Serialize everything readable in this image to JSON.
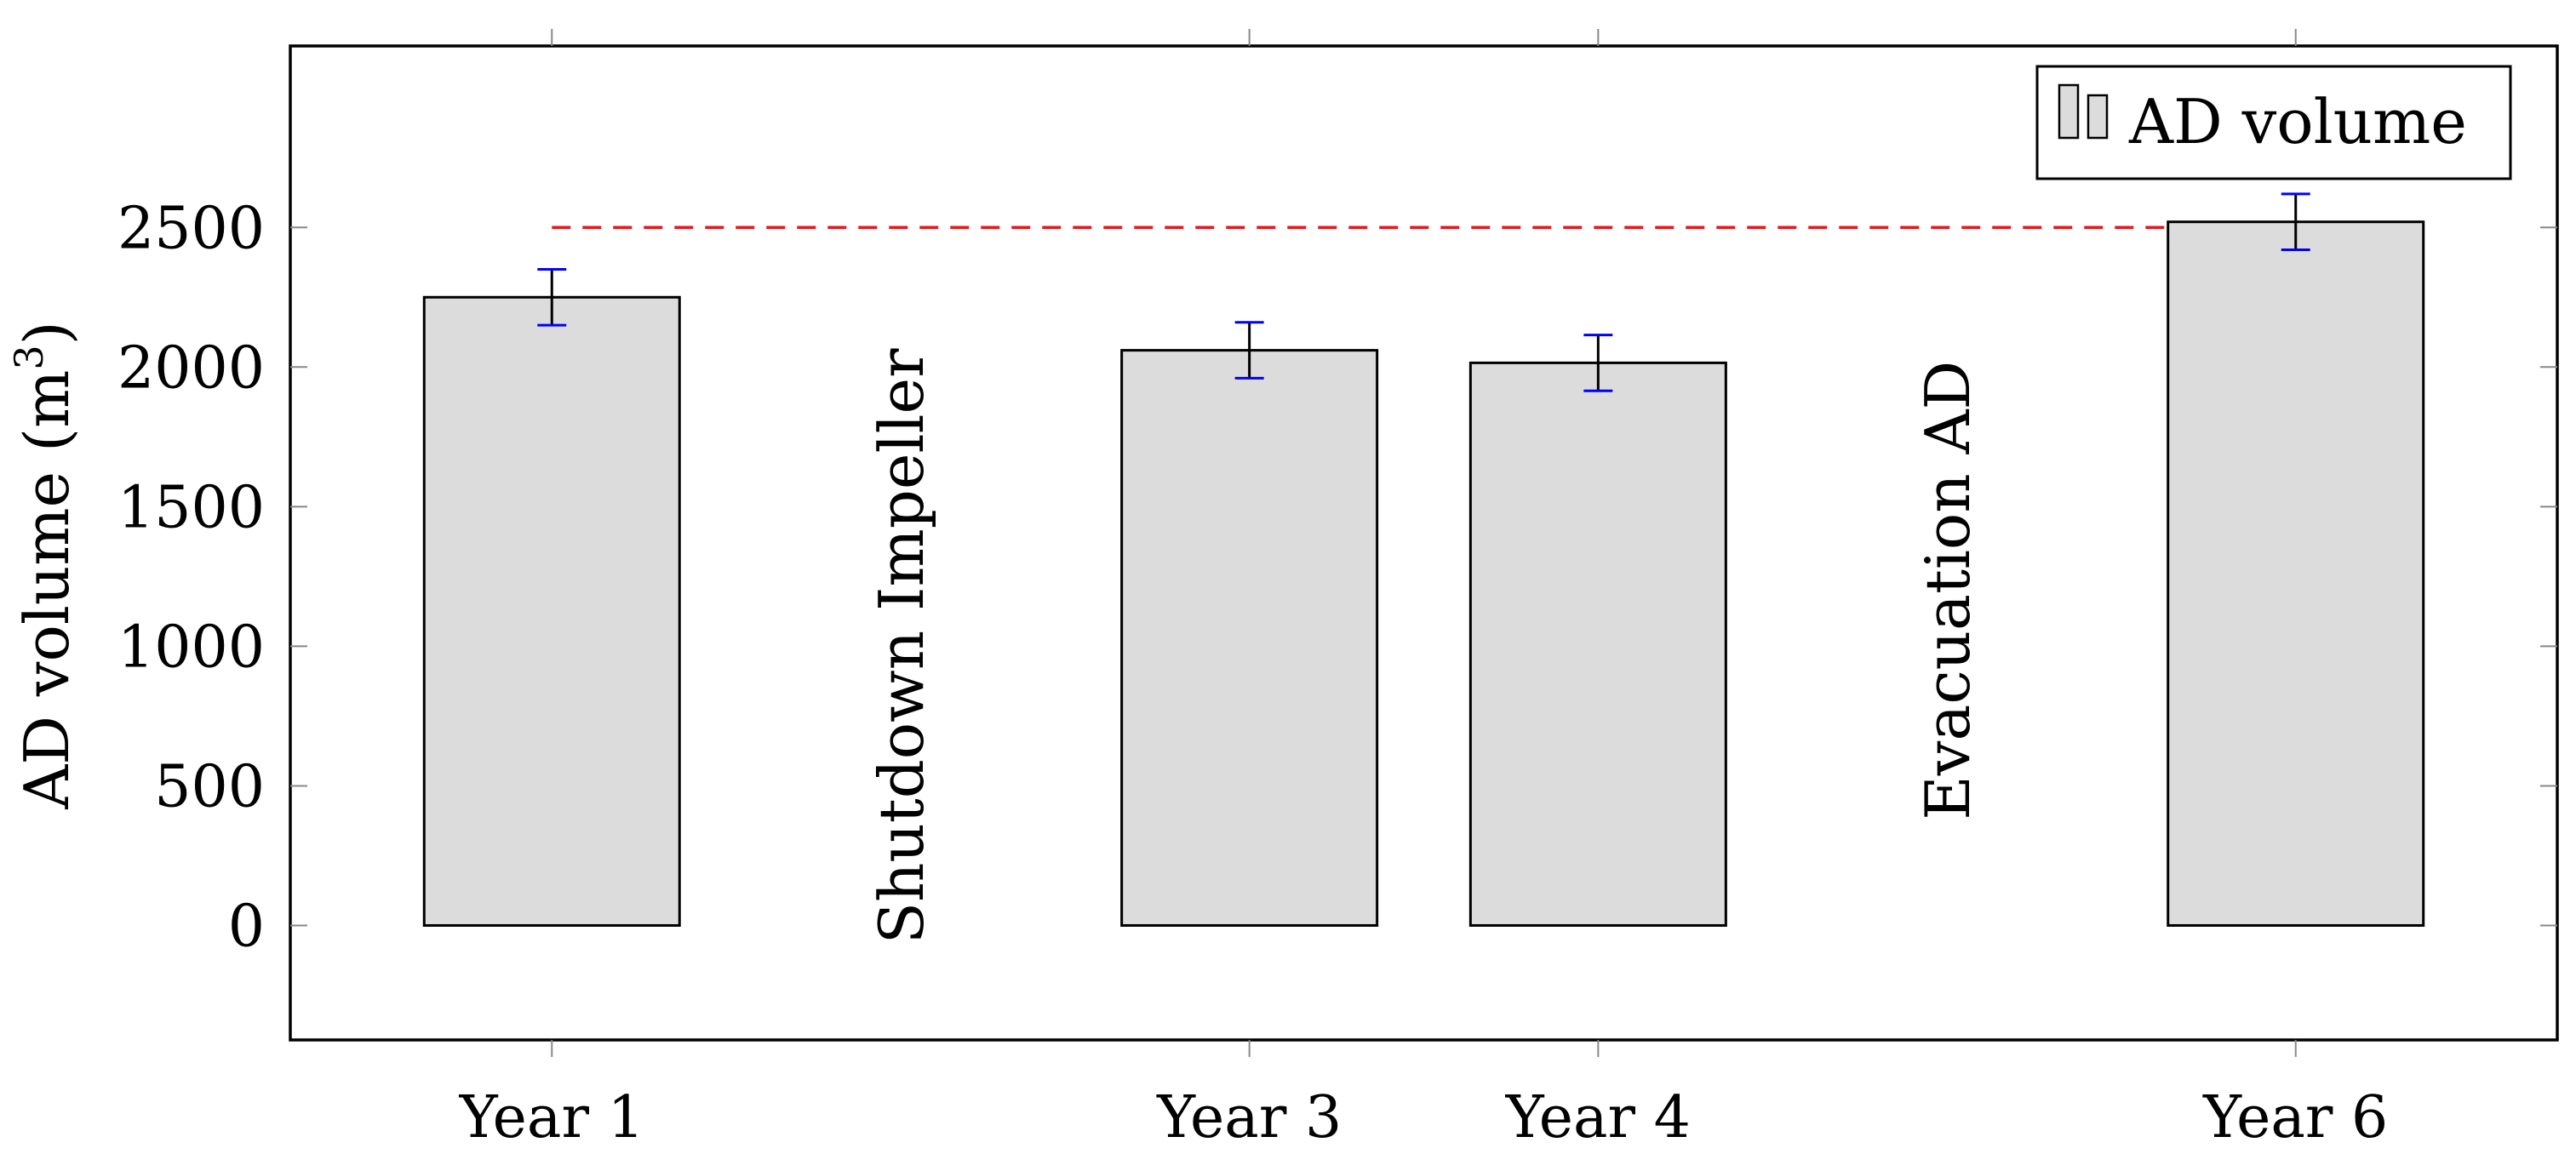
{
  "chart_data": {
    "type": "bar",
    "categories": [
      "Year 1",
      "Year 3",
      "Year 4",
      "Year 6"
    ],
    "x_positions": [
      1,
      3,
      4,
      6
    ],
    "series": [
      {
        "name": "AD volume",
        "values": [
          2250,
          2060,
          2015,
          2520
        ],
        "error_minus": [
          100,
          100,
          100,
          100
        ],
        "error_plus": [
          100,
          100,
          100,
          100
        ],
        "fill_color": "#dcdcdc",
        "edge_color": "#000000"
      }
    ],
    "xlim": [
      0.25,
      6.75
    ],
    "ylim": [
      -410,
      3150
    ],
    "yticks": [
      0,
      500,
      1000,
      1500,
      2000,
      2500
    ],
    "ylabel_text": "AD volume (m",
    "ylabel_sup": "3",
    "ylabel_close": ")",
    "reference_line": {
      "y": 2500,
      "x_from": 1,
      "x_to": 6,
      "color": "#e8171b",
      "style": "dashed"
    },
    "annotations": [
      {
        "text": "Shutdown Impeller",
        "x": 2,
        "y": 1000,
        "rotation": -90
      },
      {
        "text": "Evacuation AD",
        "x": 5,
        "y": 1200,
        "rotation": -90
      }
    ],
    "error_bar_colors": {
      "lower": "#0000ff",
      "upper": "#000000"
    },
    "legend": {
      "position": "top-right",
      "entries": [
        "AD volume"
      ]
    },
    "grid": false
  }
}
